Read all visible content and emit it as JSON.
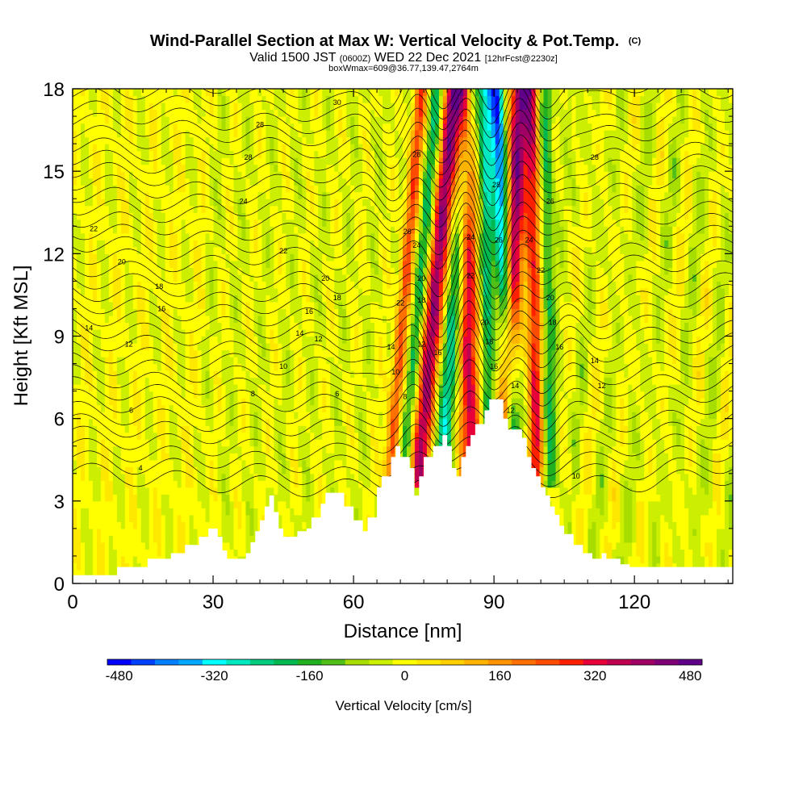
{
  "chart_data": {
    "type": "heatmap",
    "title": {
      "main": "Wind-Parallel Section at Max W: Vertical Velocity & Pot.Temp.",
      "main_suffix": "(C)",
      "line2_a": "Valid 1500 JST",
      "line2_b": "(0600Z)",
      "line2_c": "WED 22 Dec 2021",
      "line2_d": "[12hrFcst@2230z]",
      "line3": "boxWmax=609@36.77,139.47,2764m"
    },
    "xlabel": "Distance [nm]",
    "ylabel": "Height [Kft MSL]",
    "xlim": [
      0,
      141
    ],
    "ylim": [
      0,
      18
    ],
    "xticks": [
      0,
      30,
      60,
      90,
      120
    ],
    "yticks": [
      0,
      3,
      6,
      9,
      12,
      15,
      18
    ],
    "colorbar": {
      "title": "Vertical Velocity [cm/s]",
      "min": -480,
      "max": 480,
      "step": 40,
      "labels": [
        -480,
        -320,
        -160,
        0,
        160,
        320,
        480
      ],
      "colors": [
        "#0000ff",
        "#0040ff",
        "#0080ff",
        "#00a8ff",
        "#00ffff",
        "#00e8c0",
        "#00cc80",
        "#00b850",
        "#20b020",
        "#50c018",
        "#a8dd00",
        "#ccee00",
        "#ffff00",
        "#ffe800",
        "#ffd000",
        "#ffb400",
        "#ff9400",
        "#ff7000",
        "#ff4c00",
        "#ff2000",
        "#e8003a",
        "#c00050",
        "#a00064",
        "#800078",
        "#600088"
      ]
    },
    "terrain": [
      [
        0,
        0.3
      ],
      [
        9.5,
        0.3
      ],
      [
        9.5,
        0.6
      ],
      [
        16,
        0.6
      ],
      [
        16,
        0.9
      ],
      [
        21,
        0.9
      ],
      [
        21,
        1.1
      ],
      [
        24,
        1.1
      ],
      [
        24,
        1.4
      ],
      [
        27,
        1.4
      ],
      [
        27,
        1.7
      ],
      [
        29,
        1.7
      ],
      [
        29,
        2.0
      ],
      [
        31,
        2.0
      ],
      [
        31,
        1.7
      ],
      [
        32,
        1.7
      ],
      [
        32,
        1.2
      ],
      [
        33,
        1.2
      ],
      [
        33,
        0.9
      ],
      [
        37,
        0.9
      ],
      [
        37,
        1.1
      ],
      [
        38,
        1.1
      ],
      [
        38,
        1.5
      ],
      [
        39,
        1.5
      ],
      [
        39,
        1.9
      ],
      [
        40,
        1.9
      ],
      [
        40,
        2.3
      ],
      [
        41,
        2.3
      ],
      [
        41,
        2.8
      ],
      [
        42,
        2.8
      ],
      [
        42,
        3.2
      ],
      [
        43,
        3.2
      ],
      [
        43,
        2.6
      ],
      [
        44,
        2.6
      ],
      [
        44,
        2.0
      ],
      [
        45,
        2.0
      ],
      [
        45,
        1.7
      ],
      [
        48,
        1.7
      ],
      [
        48,
        1.9
      ],
      [
        50,
        1.9
      ],
      [
        50,
        2.0
      ],
      [
        51,
        2.0
      ],
      [
        51,
        2.4
      ],
      [
        53,
        2.4
      ],
      [
        53,
        2.9
      ],
      [
        54,
        2.9
      ],
      [
        54,
        3.3
      ],
      [
        58,
        3.3
      ],
      [
        58,
        2.8
      ],
      [
        60,
        2.8
      ],
      [
        60,
        2.3
      ],
      [
        62,
        2.3
      ],
      [
        62,
        1.9
      ],
      [
        63,
        1.9
      ],
      [
        63,
        2.4
      ],
      [
        65,
        2.4
      ],
      [
        65,
        3.5
      ],
      [
        66,
        3.5
      ],
      [
        66,
        3.9
      ],
      [
        68,
        3.9
      ],
      [
        68,
        4.6
      ],
      [
        69,
        4.6
      ],
      [
        69,
        5.0
      ],
      [
        70,
        5.0
      ],
      [
        70,
        4.6
      ],
      [
        72,
        4.6
      ],
      [
        72,
        4.2
      ],
      [
        73,
        4.2
      ],
      [
        73,
        3.2
      ],
      [
        74,
        3.2
      ],
      [
        74,
        3.9
      ],
      [
        75,
        3.9
      ],
      [
        75,
        4.6
      ],
      [
        77,
        4.6
      ],
      [
        77,
        5.0
      ],
      [
        79,
        5.0
      ],
      [
        79,
        5.4
      ],
      [
        80,
        5.4
      ],
      [
        80,
        5.0
      ],
      [
        81,
        5.0
      ],
      [
        81,
        4.2
      ],
      [
        82,
        4.2
      ],
      [
        82,
        3.9
      ],
      [
        83,
        3.9
      ],
      [
        83,
        4.6
      ],
      [
        84,
        4.6
      ],
      [
        84,
        5.0
      ],
      [
        85,
        5.0
      ],
      [
        85,
        5.4
      ],
      [
        86,
        5.4
      ],
      [
        86,
        5.8
      ],
      [
        88,
        5.8
      ],
      [
        88,
        6.3
      ],
      [
        89,
        6.3
      ],
      [
        89,
        6.7
      ],
      [
        92,
        6.7
      ],
      [
        92,
        6.0
      ],
      [
        93,
        6.0
      ],
      [
        93,
        5.6
      ],
      [
        96,
        5.6
      ],
      [
        96,
        5.3
      ],
      [
        97,
        5.3
      ],
      [
        97,
        4.6
      ],
      [
        98,
        4.6
      ],
      [
        98,
        4.2
      ],
      [
        99,
        4.2
      ],
      [
        99,
        3.9
      ],
      [
        100,
        3.9
      ],
      [
        100,
        3.5
      ],
      [
        101,
        3.5
      ],
      [
        101,
        3.2
      ],
      [
        102,
        3.2
      ],
      [
        102,
        2.8
      ],
      [
        103,
        2.8
      ],
      [
        103,
        2.5
      ],
      [
        104,
        2.5
      ],
      [
        104,
        2.1
      ],
      [
        105,
        2.1
      ],
      [
        105,
        1.8
      ],
      [
        107,
        1.8
      ],
      [
        107,
        1.4
      ],
      [
        109,
        1.4
      ],
      [
        109,
        1.1
      ],
      [
        111,
        1.1
      ],
      [
        111,
        0.9
      ],
      [
        113,
        0.9
      ],
      [
        113,
        1.1
      ],
      [
        114,
        1.1
      ],
      [
        114,
        0.9
      ],
      [
        117,
        0.9
      ],
      [
        117,
        0.7
      ],
      [
        119,
        0.7
      ],
      [
        119,
        0.6
      ],
      [
        141,
        0.6
      ],
      [
        141,
        0
      ]
    ],
    "updrafts": [
      {
        "x0": 74,
        "xtop": 81.5,
        "w": 2.2,
        "peak": 420,
        "sign": 1
      },
      {
        "x0": 68,
        "xtop": 74.5,
        "w": 1.5,
        "peak": 260,
        "sign": 1
      },
      {
        "x0": 85,
        "xtop": 84,
        "w": 2.2,
        "peak": 380,
        "sign": 1
      },
      {
        "x0": 92,
        "xtop": 95.5,
        "w": 2.0,
        "peak": 480,
        "sign": 1
      },
      {
        "x0": 99,
        "xtop": 98,
        "w": 1.6,
        "peak": 320,
        "sign": 1
      },
      {
        "x0": 94,
        "xtop": 90.5,
        "w": 1.7,
        "peak": -420,
        "sign": -1
      },
      {
        "x0": 79,
        "xtop": 85.5,
        "w": 2.0,
        "peak": -240,
        "sign": -1
      },
      {
        "x0": 71,
        "xtop": 78,
        "w": 1.6,
        "peak": -200,
        "sign": -1
      },
      {
        "x0": 89,
        "xtop": 88,
        "w": 1.5,
        "peak": -220,
        "sign": -1
      },
      {
        "x0": 102,
        "xtop": 101,
        "w": 1.4,
        "peak": -160,
        "sign": -1
      }
    ],
    "contour_labels": [
      {
        "text": "30",
        "x": 56.5,
        "y": 17.5
      },
      {
        "text": "28",
        "x": 40,
        "y": 16.7
      },
      {
        "text": "28",
        "x": 37.5,
        "y": 15.5
      },
      {
        "text": "24",
        "x": 36.5,
        "y": 13.9
      },
      {
        "text": "22",
        "x": 4.5,
        "y": 12.9
      },
      {
        "text": "20",
        "x": 10.5,
        "y": 11.7
      },
      {
        "text": "22",
        "x": 45,
        "y": 12.1
      },
      {
        "text": "20",
        "x": 54,
        "y": 11.1
      },
      {
        "text": "18",
        "x": 18.5,
        "y": 10.8
      },
      {
        "text": "18",
        "x": 56.5,
        "y": 10.4
      },
      {
        "text": "16",
        "x": 19,
        "y": 10.0
      },
      {
        "text": "16",
        "x": 50.5,
        "y": 9.9
      },
      {
        "text": "14",
        "x": 3.5,
        "y": 9.3
      },
      {
        "text": "12",
        "x": 12,
        "y": 8.7
      },
      {
        "text": "14",
        "x": 48.5,
        "y": 9.1
      },
      {
        "text": "12",
        "x": 52.5,
        "y": 8.9
      },
      {
        "text": "10",
        "x": 45,
        "y": 7.9
      },
      {
        "text": "8",
        "x": 38.5,
        "y": 6.9
      },
      {
        "text": "6",
        "x": 12.5,
        "y": 6.3
      },
      {
        "text": "6",
        "x": 56.5,
        "y": 6.9
      },
      {
        "text": "4",
        "x": 14.5,
        "y": 4.2
      },
      {
        "text": "14",
        "x": 68,
        "y": 8.6
      },
      {
        "text": "10",
        "x": 69,
        "y": 7.7
      },
      {
        "text": "8",
        "x": 71,
        "y": 6.8
      },
      {
        "text": "22",
        "x": 70,
        "y": 10.2
      },
      {
        "text": "18",
        "x": 74.5,
        "y": 10.3
      },
      {
        "text": "12",
        "x": 74.5,
        "y": 8.7
      },
      {
        "text": "16",
        "x": 78,
        "y": 8.4
      },
      {
        "text": "20",
        "x": 74.5,
        "y": 11.1
      },
      {
        "text": "24",
        "x": 73.5,
        "y": 12.3
      },
      {
        "text": "26",
        "x": 71.5,
        "y": 12.8
      },
      {
        "text": "28",
        "x": 73.5,
        "y": 15.6
      },
      {
        "text": "24",
        "x": 85,
        "y": 12.6
      },
      {
        "text": "22",
        "x": 85,
        "y": 11.2
      },
      {
        "text": "20",
        "x": 88,
        "y": 9.5
      },
      {
        "text": "18",
        "x": 89,
        "y": 8.8
      },
      {
        "text": "16",
        "x": 90,
        "y": 7.9
      },
      {
        "text": "28",
        "x": 90.5,
        "y": 14.5
      },
      {
        "text": "26",
        "x": 91,
        "y": 12.5
      },
      {
        "text": "14",
        "x": 94.5,
        "y": 7.2
      },
      {
        "text": "12",
        "x": 93.5,
        "y": 6.3
      },
      {
        "text": "24",
        "x": 97.5,
        "y": 12.5
      },
      {
        "text": "26",
        "x": 102,
        "y": 13.9
      },
      {
        "text": "22",
        "x": 100,
        "y": 11.4
      },
      {
        "text": "20",
        "x": 102,
        "y": 10.4
      },
      {
        "text": "18",
        "x": 102.5,
        "y": 9.5
      },
      {
        "text": "16",
        "x": 104,
        "y": 8.6
      },
      {
        "text": "14",
        "x": 111.5,
        "y": 8.1
      },
      {
        "text": "12",
        "x": 113,
        "y": 7.2
      },
      {
        "text": "28",
        "x": 111.5,
        "y": 15.5
      },
      {
        "text": "10",
        "x": 107.5,
        "y": 3.9
      }
    ]
  }
}
